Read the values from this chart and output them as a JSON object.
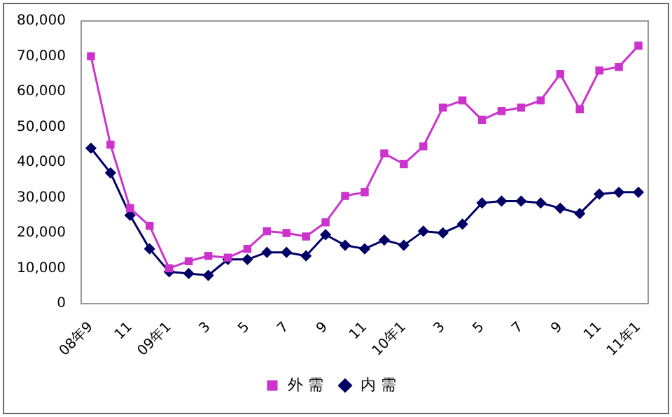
{
  "chart_data": {
    "type": "line",
    "categories": [
      "08年9",
      null,
      "11",
      null,
      "09年1",
      null,
      "3",
      null,
      "5",
      null,
      "7",
      null,
      "9",
      null,
      "11",
      null,
      "10年1",
      null,
      "3",
      null,
      "5",
      null,
      "7",
      null,
      "9",
      null,
      "11",
      null,
      "11年1"
    ],
    "series": [
      {
        "name": "内 需",
        "color": "#000066",
        "marker": "diamond",
        "values": [
          44000,
          37000,
          25000,
          15500,
          9000,
          8500,
          8000,
          12500,
          12500,
          14500,
          14500,
          13500,
          19500,
          16500,
          15500,
          18000,
          16500,
          20500,
          20000,
          22500,
          28500,
          29000,
          29000,
          28500,
          27000,
          25500,
          31000,
          31500,
          31500
        ]
      },
      {
        "name": "外 需",
        "color": "#cc33cc",
        "marker": "square",
        "values": [
          70000,
          45000,
          27000,
          22000,
          10000,
          12000,
          13500,
          13000,
          15500,
          20500,
          20000,
          19000,
          23000,
          30500,
          31500,
          42500,
          39500,
          44500,
          55500,
          57500,
          52000,
          54500,
          55500,
          57500,
          65000,
          55000,
          66000,
          67000,
          73000
        ]
      }
    ],
    "ylim": [
      0,
      80000
    ],
    "yticks": [
      0,
      {
        "value": 10000,
        "label": "10,000"
      },
      {
        "value": 20000,
        "label": "20,000"
      },
      {
        "value": 30000,
        "label": "30,000"
      },
      {
        "value": 40000,
        "label": "40,000"
      },
      {
        "value": 50000,
        "label": "50,000"
      },
      {
        "value": 60000,
        "label": "60,000"
      },
      {
        "value": 70000,
        "label": "70,000"
      },
      {
        "value": 80000,
        "label": "80,000"
      }
    ],
    "grid": false,
    "legend": "bottom",
    "line_style": "solid"
  }
}
